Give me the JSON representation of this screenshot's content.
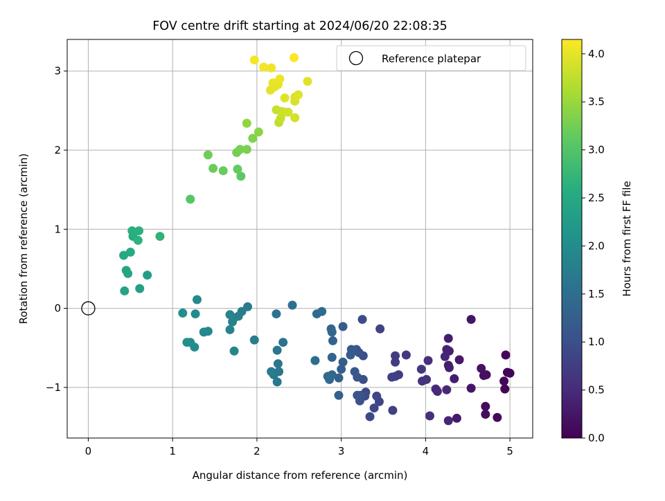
{
  "chart_data": {
    "type": "scatter",
    "title": "FOV centre drift starting at 2024/06/20 22:08:35",
    "xlabel": "Angular distance from reference (arcmin)",
    "ylabel": "Rotation from reference (arcmin)",
    "xlim": [
      -0.25,
      5.27
    ],
    "ylim": [
      -1.64,
      3.4
    ],
    "xticks": [
      0,
      1,
      2,
      3,
      4,
      5
    ],
    "yticks": [
      -1,
      0,
      1,
      2,
      3
    ],
    "grid": true,
    "legend_position": "top-right",
    "reference": {
      "label": "Reference platepar",
      "x": 0,
      "y": 0
    },
    "colorbar": {
      "label": "Hours from first FF file",
      "min": 0.0,
      "max": 4.15,
      "ticks": [
        "0.0",
        "0.5",
        "1.0",
        "1.5",
        "2.0",
        "2.5",
        "3.0",
        "3.5",
        "4.0"
      ],
      "colormap": "viridis"
    },
    "points": [
      {
        "x": 5.0,
        "y": -0.82,
        "t": 0.02
      },
      {
        "x": 4.97,
        "y": -0.81,
        "t": 0.04
      },
      {
        "x": 4.93,
        "y": -0.92,
        "t": 0.06
      },
      {
        "x": 4.94,
        "y": -1.02,
        "t": 0.05
      },
      {
        "x": 4.95,
        "y": -0.59,
        "t": 0.08
      },
      {
        "x": 4.85,
        "y": -1.38,
        "t": 0.1
      },
      {
        "x": 4.71,
        "y": -1.24,
        "t": 0.12
      },
      {
        "x": 4.71,
        "y": -1.34,
        "t": 0.14
      },
      {
        "x": 4.72,
        "y": -0.84,
        "t": 0.16
      },
      {
        "x": 4.69,
        "y": -0.85,
        "t": 0.18
      },
      {
        "x": 4.66,
        "y": -0.76,
        "t": 0.2
      },
      {
        "x": 4.54,
        "y": -0.14,
        "t": 0.22
      },
      {
        "x": 4.54,
        "y": -1.01,
        "t": 0.25
      },
      {
        "x": 4.4,
        "y": -0.65,
        "t": 0.28
      },
      {
        "x": 4.37,
        "y": -1.39,
        "t": 0.3
      },
      {
        "x": 4.34,
        "y": -0.89,
        "t": 0.32
      },
      {
        "x": 4.27,
        "y": -0.38,
        "t": 0.33
      },
      {
        "x": 4.27,
        "y": -0.72,
        "t": 0.35
      },
      {
        "x": 4.28,
        "y": -0.75,
        "t": 0.36
      },
      {
        "x": 4.28,
        "y": -0.54,
        "t": 0.38
      },
      {
        "x": 4.25,
        "y": -0.52,
        "t": 0.4
      },
      {
        "x": 4.23,
        "y": -0.61,
        "t": 0.42
      },
      {
        "x": 4.27,
        "y": -1.42,
        "t": 0.44
      },
      {
        "x": 4.25,
        "y": -1.03,
        "t": 0.46
      },
      {
        "x": 4.14,
        "y": -1.05,
        "t": 0.48
      },
      {
        "x": 4.12,
        "y": -1.02,
        "t": 0.5
      },
      {
        "x": 4.05,
        "y": -1.36,
        "t": 0.55
      },
      {
        "x": 4.03,
        "y": -0.66,
        "t": 0.58
      },
      {
        "x": 4.01,
        "y": -0.9,
        "t": 0.6
      },
      {
        "x": 3.96,
        "y": -0.92,
        "t": 0.62
      },
      {
        "x": 3.95,
        "y": -0.77,
        "t": 0.65
      },
      {
        "x": 3.77,
        "y": -0.59,
        "t": 0.68
      },
      {
        "x": 3.68,
        "y": -0.84,
        "t": 0.7
      },
      {
        "x": 3.64,
        "y": -0.68,
        "t": 0.72
      },
      {
        "x": 3.64,
        "y": -0.6,
        "t": 0.74
      },
      {
        "x": 3.64,
        "y": -0.86,
        "t": 0.76
      },
      {
        "x": 3.61,
        "y": -1.29,
        "t": 0.78
      },
      {
        "x": 3.6,
        "y": -0.87,
        "t": 0.8
      },
      {
        "x": 3.46,
        "y": -0.26,
        "t": 0.82
      },
      {
        "x": 3.45,
        "y": -1.18,
        "t": 0.84
      },
      {
        "x": 3.42,
        "y": -1.11,
        "t": 0.86
      },
      {
        "x": 3.39,
        "y": -1.26,
        "t": 0.88
      },
      {
        "x": 3.34,
        "y": -1.37,
        "t": 0.9
      },
      {
        "x": 3.29,
        "y": -1.06,
        "t": 0.92
      },
      {
        "x": 3.28,
        "y": -1.11,
        "t": 0.94
      },
      {
        "x": 3.25,
        "y": -0.14,
        "t": 0.96
      },
      {
        "x": 3.26,
        "y": -0.6,
        "t": 0.98
      },
      {
        "x": 3.26,
        "y": -0.9,
        "t": 1.0
      },
      {
        "x": 3.23,
        "y": -1.1,
        "t": 1.02
      },
      {
        "x": 3.22,
        "y": -1.17,
        "t": 1.04
      },
      {
        "x": 3.21,
        "y": -0.56,
        "t": 1.06
      },
      {
        "x": 3.19,
        "y": -0.87,
        "t": 1.08
      },
      {
        "x": 3.19,
        "y": -1.1,
        "t": 1.1
      },
      {
        "x": 3.18,
        "y": -0.52,
        "t": 1.12
      },
      {
        "x": 3.16,
        "y": -0.8,
        "t": 1.14
      },
      {
        "x": 3.12,
        "y": -0.52,
        "t": 1.16
      },
      {
        "x": 3.11,
        "y": -0.59,
        "t": 1.18
      },
      {
        "x": 3.02,
        "y": -0.23,
        "t": 1.2
      },
      {
        "x": 3.02,
        "y": -0.68,
        "t": 1.22
      },
      {
        "x": 3.0,
        "y": -0.77,
        "t": 1.24
      },
      {
        "x": 2.97,
        "y": -0.88,
        "t": 1.26
      },
      {
        "x": 2.97,
        "y": -1.1,
        "t": 1.28
      },
      {
        "x": 2.9,
        "y": -0.41,
        "t": 1.3
      },
      {
        "x": 2.89,
        "y": -0.62,
        "t": 1.32
      },
      {
        "x": 2.88,
        "y": -0.26,
        "t": 1.34
      },
      {
        "x": 2.89,
        "y": -0.3,
        "t": 1.36
      },
      {
        "x": 2.89,
        "y": -0.84,
        "t": 1.38
      },
      {
        "x": 2.86,
        "y": -0.9,
        "t": 1.4
      },
      {
        "x": 2.84,
        "y": -0.86,
        "t": 1.42
      },
      {
        "x": 2.77,
        "y": -0.04,
        "t": 1.44
      },
      {
        "x": 2.71,
        "y": -0.07,
        "t": 1.46
      },
      {
        "x": 2.69,
        "y": -0.66,
        "t": 1.48
      },
      {
        "x": 2.42,
        "y": 0.04,
        "t": 1.52
      },
      {
        "x": 2.31,
        "y": -0.43,
        "t": 1.55
      },
      {
        "x": 2.23,
        "y": -0.07,
        "t": 1.58
      },
      {
        "x": 2.24,
        "y": -0.53,
        "t": 1.6
      },
      {
        "x": 2.25,
        "y": -0.7,
        "t": 1.62
      },
      {
        "x": 2.26,
        "y": -0.8,
        "t": 1.64
      },
      {
        "x": 2.24,
        "y": -0.93,
        "t": 1.66
      },
      {
        "x": 2.2,
        "y": -0.84,
        "t": 1.68
      },
      {
        "x": 2.17,
        "y": -0.8,
        "t": 1.7
      },
      {
        "x": 1.97,
        "y": -0.4,
        "t": 1.72
      },
      {
        "x": 1.89,
        "y": 0.02,
        "t": 1.74
      },
      {
        "x": 1.82,
        "y": -0.04,
        "t": 1.76
      },
      {
        "x": 1.78,
        "y": -0.1,
        "t": 1.78
      },
      {
        "x": 1.73,
        "y": -0.12,
        "t": 1.8
      },
      {
        "x": 1.71,
        "y": -0.17,
        "t": 1.82
      },
      {
        "x": 1.68,
        "y": -0.27,
        "t": 1.84
      },
      {
        "x": 1.68,
        "y": -0.08,
        "t": 1.86
      },
      {
        "x": 1.73,
        "y": -0.54,
        "t": 1.88
      },
      {
        "x": 1.42,
        "y": -0.29,
        "t": 1.9
      },
      {
        "x": 1.37,
        "y": -0.3,
        "t": 1.92
      },
      {
        "x": 1.29,
        "y": 0.11,
        "t": 1.95
      },
      {
        "x": 1.27,
        "y": -0.07,
        "t": 1.97
      },
      {
        "x": 1.26,
        "y": -0.49,
        "t": 2.0
      },
      {
        "x": 1.21,
        "y": -0.43,
        "t": 2.02
      },
      {
        "x": 1.17,
        "y": -0.43,
        "t": 2.04
      },
      {
        "x": 1.12,
        "y": -0.06,
        "t": 2.06
      },
      {
        "x": 0.7,
        "y": 0.42,
        "t": 2.3
      },
      {
        "x": 0.61,
        "y": 0.25,
        "t": 2.35
      },
      {
        "x": 0.43,
        "y": 0.22,
        "t": 2.4
      },
      {
        "x": 0.45,
        "y": 0.48,
        "t": 2.42
      },
      {
        "x": 0.47,
        "y": 0.44,
        "t": 2.44
      },
      {
        "x": 0.42,
        "y": 0.67,
        "t": 2.48
      },
      {
        "x": 0.5,
        "y": 0.71,
        "t": 2.5
      },
      {
        "x": 0.53,
        "y": 0.91,
        "t": 2.55
      },
      {
        "x": 0.52,
        "y": 0.98,
        "t": 2.6
      },
      {
        "x": 0.6,
        "y": 0.98,
        "t": 2.62
      },
      {
        "x": 0.59,
        "y": 0.86,
        "t": 2.65
      },
      {
        "x": 0.85,
        "y": 0.91,
        "t": 2.68
      },
      {
        "x": 1.21,
        "y": 1.38,
        "t": 3.05
      },
      {
        "x": 1.81,
        "y": 1.67,
        "t": 3.1
      },
      {
        "x": 1.77,
        "y": 1.76,
        "t": 3.15
      },
      {
        "x": 1.6,
        "y": 1.74,
        "t": 3.18
      },
      {
        "x": 1.48,
        "y": 1.77,
        "t": 3.2
      },
      {
        "x": 1.42,
        "y": 1.94,
        "t": 3.22
      },
      {
        "x": 1.76,
        "y": 1.97,
        "t": 3.25
      },
      {
        "x": 1.8,
        "y": 2.01,
        "t": 3.28
      },
      {
        "x": 1.88,
        "y": 2.01,
        "t": 3.3
      },
      {
        "x": 1.95,
        "y": 2.15,
        "t": 3.35
      },
      {
        "x": 2.02,
        "y": 2.23,
        "t": 3.4
      },
      {
        "x": 1.88,
        "y": 2.34,
        "t": 3.45
      },
      {
        "x": 2.26,
        "y": 2.35,
        "t": 3.75
      },
      {
        "x": 2.28,
        "y": 2.4,
        "t": 3.78
      },
      {
        "x": 2.23,
        "y": 2.51,
        "t": 3.8
      },
      {
        "x": 2.29,
        "y": 2.49,
        "t": 3.82
      },
      {
        "x": 2.33,
        "y": 2.48,
        "t": 3.84
      },
      {
        "x": 2.37,
        "y": 2.48,
        "t": 3.86
      },
      {
        "x": 2.45,
        "y": 2.41,
        "t": 3.88
      },
      {
        "x": 2.45,
        "y": 2.62,
        "t": 3.9
      },
      {
        "x": 2.45,
        "y": 2.67,
        "t": 3.92
      },
      {
        "x": 2.49,
        "y": 2.7,
        "t": 3.94
      },
      {
        "x": 2.33,
        "y": 2.66,
        "t": 3.95
      },
      {
        "x": 2.6,
        "y": 2.87,
        "t": 3.97
      },
      {
        "x": 2.16,
        "y": 2.76,
        "t": 3.98
      },
      {
        "x": 2.21,
        "y": 2.8,
        "t": 4.0
      },
      {
        "x": 2.25,
        "y": 2.83,
        "t": 4.01
      },
      {
        "x": 2.19,
        "y": 2.85,
        "t": 4.02
      },
      {
        "x": 2.27,
        "y": 2.9,
        "t": 4.04
      },
      {
        "x": 2.17,
        "y": 3.04,
        "t": 4.06
      },
      {
        "x": 2.08,
        "y": 3.05,
        "t": 4.08
      },
      {
        "x": 1.97,
        "y": 3.14,
        "t": 4.1
      },
      {
        "x": 2.44,
        "y": 3.17,
        "t": 4.13
      }
    ]
  }
}
